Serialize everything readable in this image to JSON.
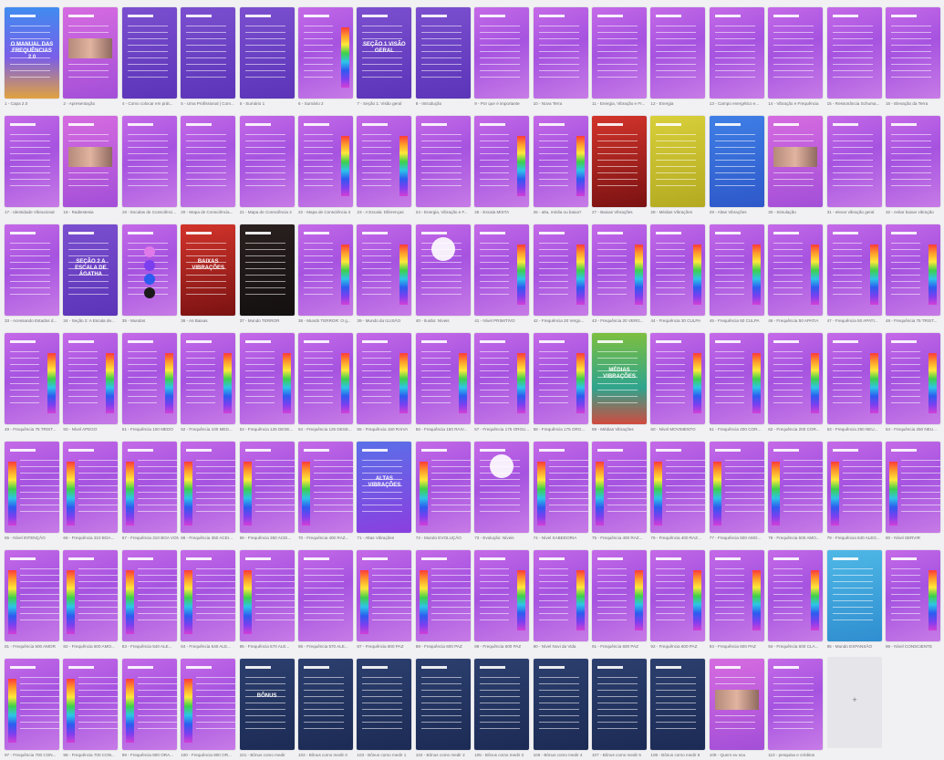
{
  "add_slide_label": "+",
  "slides": [
    {
      "cap": "1 - Capa 2.0",
      "v": "cover",
      "big": "O MANUAL DAS FREQUÊNCIAS 2.0"
    },
    {
      "cap": "2 - Apresentação",
      "v": "photo"
    },
    {
      "cap": "4 - Como colocar em prát...",
      "v": "purple"
    },
    {
      "cap": "5 - Uma Profissional | Com...",
      "v": "purple"
    },
    {
      "cap": "6 - Sumário 1",
      "v": "purple"
    },
    {
      "cap": "6 - Sumário 2",
      "v": "bar"
    },
    {
      "cap": "7 - Seção 1: Visão geral",
      "v": "purple",
      "big": "SEÇÃO 1 VISÃO GERAL"
    },
    {
      "cap": "8 - Introdução",
      "v": "purple"
    },
    {
      "cap": "9 - Por que é importante",
      "v": "plain"
    },
    {
      "cap": "10 - Nova Terra",
      "v": "plain"
    },
    {
      "cap": "11 - Energia, Vibração e Fr...",
      "v": "plain"
    },
    {
      "cap": "12 - Energia",
      "v": "plain"
    },
    {
      "cap": "13 - Campo energético e...",
      "v": "plain"
    },
    {
      "cap": "14 - Vibração e Frequência",
      "v": "plain"
    },
    {
      "cap": "15 - Ressonância Schuma...",
      "v": "plain"
    },
    {
      "cap": "16 - Elevação da Terra",
      "v": "plain"
    },
    {
      "cap": "17 - Identidade Vibracional",
      "v": "plain"
    },
    {
      "cap": "18 - Radiestesia",
      "v": "photo"
    },
    {
      "cap": "19 - Escalas de Consciênci...",
      "v": "plain"
    },
    {
      "cap": "20 - Mapa de Consciência...",
      "v": "plain"
    },
    {
      "cap": "21 - Mapa de Consciência 2",
      "v": "plain"
    },
    {
      "cap": "22 - Mapa de Consciência 3",
      "v": "bar"
    },
    {
      "cap": "23 - A Escala: Diferenças",
      "v": "bar"
    },
    {
      "cap": "24 - Energia, Vibração e F...",
      "v": "plain"
    },
    {
      "cap": "25 - Escala MISTA",
      "v": "bar"
    },
    {
      "cap": "26 - alta, média ou baixa?",
      "v": "bar"
    },
    {
      "cap": "27 - Baixas Vibrações",
      "v": "red"
    },
    {
      "cap": "28 - Médias Vibrações",
      "v": "yellow"
    },
    {
      "cap": "29 - Altas Vibrações",
      "v": "blue"
    },
    {
      "cap": "30 - Simulação",
      "v": "photo"
    },
    {
      "cap": "31 - elevar vibração geral",
      "v": "plain"
    },
    {
      "cap": "32 - evitar baixar vibração",
      "v": "plain"
    },
    {
      "cap": "33 - Acessando Estados d...",
      "v": "plain"
    },
    {
      "cap": "34 - Seção 2: A Escala de...",
      "v": "purple",
      "big": "SEÇÃO 2 A ESCALA DE ÁGATHA"
    },
    {
      "cap": "35 - Mundos",
      "v": "dots"
    },
    {
      "cap": "36 - As Baixas",
      "v": "red",
      "big": "BAIXAS VIBRAÇÕES"
    },
    {
      "cap": "37 - Mundo TERROR",
      "v": "black"
    },
    {
      "cap": "38 - Mundo TERROR: O g...",
      "v": "bar"
    },
    {
      "cap": "39 - Mundo da ILUSÃO",
      "v": "bar"
    },
    {
      "cap": "40 - Ilusão: Níveis",
      "v": "circle"
    },
    {
      "cap": "41 - Nível PRIMITIVO",
      "v": "bar"
    },
    {
      "cap": "42 - Frequência 20 Vergo...",
      "v": "bar"
    },
    {
      "cap": "43 - Frequência 20 VERG...",
      "v": "bar"
    },
    {
      "cap": "44 - Frequência 30 CULPA",
      "v": "bar"
    },
    {
      "cap": "45 - Frequência 50 CULPA",
      "v": "bar"
    },
    {
      "cap": "46 - Frequência 50 APATIA",
      "v": "bar"
    },
    {
      "cap": "47 - Frequência 50 APATI...",
      "v": "bar"
    },
    {
      "cap": "48 - Frequência 75 TRIST...",
      "v": "bar"
    },
    {
      "cap": "49 - Frequência 75 TRIST...",
      "v": "bar"
    },
    {
      "cap": "50 - Nível APEGO",
      "v": "bar"
    },
    {
      "cap": "51 - Frequência 100 MEDO",
      "v": "bar"
    },
    {
      "cap": "52 - Frequência 100 MED...",
      "v": "bar"
    },
    {
      "cap": "53 - Frequência 125 DESE...",
      "v": "bar"
    },
    {
      "cap": "54 - Frequência 125 DESE...",
      "v": "bar"
    },
    {
      "cap": "55 - Frequência 150 RAIVA",
      "v": "bar"
    },
    {
      "cap": "56 - Frequência 150 RAIV...",
      "v": "bar"
    },
    {
      "cap": "57 - Frequência 175 ORGU...",
      "v": "bar"
    },
    {
      "cap": "58 - Frequência 175 ORG...",
      "v": "bar"
    },
    {
      "cap": "59 - Médias Vibrações",
      "v": "green",
      "big": "MÉDIAS VIBRAÇÕES"
    },
    {
      "cap": "60 - Nível MOVIMENTO",
      "v": "bar"
    },
    {
      "cap": "61 - Frequência 200 COR...",
      "v": "bar"
    },
    {
      "cap": "62 - Frequência 200 COR...",
      "v": "bar"
    },
    {
      "cap": "63 - Frequência 250 NEU...",
      "v": "bar"
    },
    {
      "cap": "64 - Frequência 250 NEU...",
      "v": "bar"
    },
    {
      "cap": "65 - Nível INTENÇÃO",
      "v": "barl"
    },
    {
      "cap": "66 - Frequência 310 BOA...",
      "v": "barl"
    },
    {
      "cap": "67 - Frequência 310 BOA VON...",
      "v": "barl"
    },
    {
      "cap": "68 - Frequência 350 ACEI...",
      "v": "barl"
    },
    {
      "cap": "69 - Frequência 350 ACEI...",
      "v": "barl"
    },
    {
      "cap": "70 - Frequência 400 RAZ...",
      "v": "barl"
    },
    {
      "cap": "71 - Altas Vibrações",
      "v": "gradient",
      "big": "ALTAS VIBRAÇÕES"
    },
    {
      "cap": "72 - Mundo EVOLUÇÃO",
      "v": "barl"
    },
    {
      "cap": "73 - Evolução: Níveis",
      "v": "circle"
    },
    {
      "cap": "74 - Nível SABEDORIA",
      "v": "barl"
    },
    {
      "cap": "75 - Frequência 400 RAZ...",
      "v": "barl"
    },
    {
      "cap": "76 - Frequência 400 RAZ...",
      "v": "barl"
    },
    {
      "cap": "77 - Frequência 500 AMO...",
      "v": "barl"
    },
    {
      "cap": "78 - Frequência 500 AMO...",
      "v": "barl"
    },
    {
      "cap": "79 - Frequência 540 ALEG...",
      "v": "barl"
    },
    {
      "cap": "80 - Nível SERVIR",
      "v": "barl"
    },
    {
      "cap": "81 - Frequência 500 AMOR",
      "v": "barl"
    },
    {
      "cap": "82 - Frequência 500 AMO...",
      "v": "barl"
    },
    {
      "cap": "83 - Frequência 540 ALE...",
      "v": "barl"
    },
    {
      "cap": "84 - Frequência 540 ALE...",
      "v": "barl"
    },
    {
      "cap": "85 - Frequência 570 ALE...",
      "v": "barl"
    },
    {
      "cap": "86 - Frequência 570 ALE...",
      "v": "plain"
    },
    {
      "cap": "87 - Frequência 600 PAZ",
      "v": "barl"
    },
    {
      "cap": "88 - Frequência 600 PAZ",
      "v": "barl"
    },
    {
      "cap": "89 - Frequência 600 PAZ",
      "v": "bar"
    },
    {
      "cap": "90 - Nível Nuvi da Vida",
      "v": "bar"
    },
    {
      "cap": "91 - Frequência 600 PAZ",
      "v": "bar"
    },
    {
      "cap": "92 - Frequência 600 PAZ",
      "v": "bar"
    },
    {
      "cap": "93 - Frequência 600 PAZ",
      "v": "bar"
    },
    {
      "cap": "94 - Frequência 600 CLA...",
      "v": "bar"
    },
    {
      "cap": "95 - Mundo EXPANSÃO",
      "v": "teal"
    },
    {
      "cap": "96 - Nível CONSCIENTE",
      "v": "bar"
    },
    {
      "cap": "97 - Frequência 700 CON...",
      "v": "barl"
    },
    {
      "cap": "98 - Frequência 700 CON...",
      "v": "barl"
    },
    {
      "cap": "99 - Frequência 800 ORA...",
      "v": "barl"
    },
    {
      "cap": "100 - Frequência 800 OR...",
      "v": "barl"
    },
    {
      "cap": "101 - Bônus como medir",
      "v": "dark",
      "big": "BÔNUS"
    },
    {
      "cap": "102 - Bônus como medir 0",
      "v": "dark"
    },
    {
      "cap": "103 - Bônus como medir 1",
      "v": "dark"
    },
    {
      "cap": "104 - Bônus como medir 2",
      "v": "dark"
    },
    {
      "cap": "105 - Bônus como medir 3",
      "v": "dark"
    },
    {
      "cap": "106 - Bônus como medir 4",
      "v": "dark"
    },
    {
      "cap": "107 - Bônus como medir 5",
      "v": "dark"
    },
    {
      "cap": "108 - Bônus como medir 6",
      "v": "dark"
    },
    {
      "cap": "109 - Quem eu sou",
      "v": "photo"
    },
    {
      "cap": "110 - pesquisa e créditos",
      "v": "plain"
    }
  ]
}
